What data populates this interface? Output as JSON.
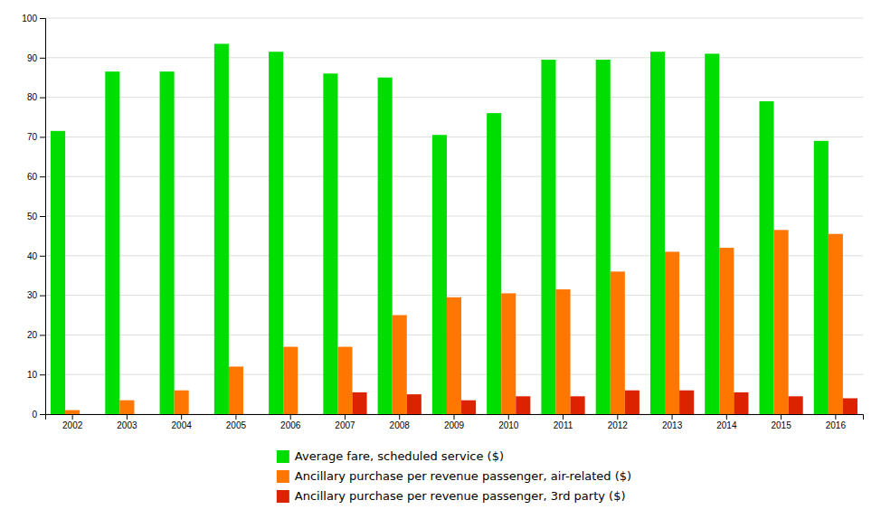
{
  "chart_data": {
    "type": "bar",
    "categories": [
      "2002",
      "2003",
      "2004",
      "2005",
      "2006",
      "2007",
      "2008",
      "2009",
      "2010",
      "2011",
      "2012",
      "2013",
      "2014",
      "2015",
      "2016"
    ],
    "series": [
      {
        "name": "Average fare, scheduled service ($)",
        "color": "#00dd00",
        "values": [
          71.5,
          86.5,
          86.5,
          93.5,
          91.5,
          86.0,
          85.0,
          70.5,
          76.0,
          89.5,
          89.5,
          91.5,
          91.0,
          79.0,
          69.0
        ]
      },
      {
        "name": "Ancillary purchase per revenue passenger, air-related ($)",
        "color": "#ff7700",
        "values": [
          1.0,
          3.5,
          6.0,
          12.0,
          17.0,
          17.0,
          25.0,
          29.5,
          30.5,
          31.5,
          36.0,
          41.0,
          42.0,
          46.5,
          45.5
        ]
      },
      {
        "name": "Ancillary purchase per revenue passenger, 3rd party ($)",
        "color": "#dd2200",
        "values": [
          0.0,
          0.0,
          0.0,
          0.0,
          0.0,
          5.5,
          5.0,
          3.5,
          4.5,
          4.5,
          6.0,
          6.0,
          5.5,
          4.5,
          4.0
        ]
      }
    ],
    "ylim": [
      0,
      100
    ],
    "yticks": [
      0,
      10,
      20,
      30,
      40,
      50,
      60,
      70,
      80,
      90,
      100
    ],
    "grid": true,
    "legend": "bottom"
  }
}
